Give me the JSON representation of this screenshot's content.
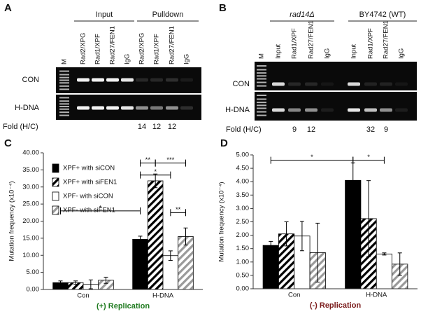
{
  "panel_a": {
    "label": "A",
    "groups": [
      "Input",
      "Pulldown"
    ],
    "lanes": [
      "M",
      "Rad2/XPG",
      "Rad1/XPF",
      "Rad27/FEN1",
      "IgG",
      "Rad2/XPG",
      "Rad1/XPF",
      "Rad27/FEN1",
      "IgG"
    ],
    "rows": [
      "CON",
      "H-DNA"
    ],
    "fold": {
      "label": "Fold (H/C)",
      "values": [
        null,
        null,
        null,
        null,
        null,
        14,
        12,
        12,
        null
      ]
    }
  },
  "panel_b": {
    "label": "B",
    "groups": [
      "rad14Δ",
      "BY4742 (WT)"
    ],
    "lanes": [
      "M",
      "Input",
      "Rad1/XPF",
      "Rad27/FEN1",
      "IgG",
      "Input",
      "Rad1/XPF",
      "Rad27/FEN1",
      "IgG"
    ],
    "rows": [
      "CON",
      "H-DNA"
    ],
    "fold": {
      "label": "Fold (H/C)",
      "values": [
        null,
        null,
        9,
        12,
        null,
        null,
        32,
        9,
        null
      ]
    }
  },
  "chart_data": [
    {
      "type": "bar",
      "panel_label": "C",
      "ylabel": "Mutation frequency (x10⁻⁴)",
      "xlabel": "(+) Replication",
      "xlabel_color": "#1e7a1e",
      "categories": [
        "Con",
        "H-DNA"
      ],
      "legend": "upper left",
      "ylim": [
        0,
        40
      ],
      "yticks": [
        {
          "value": 0,
          "label": "0.00"
        },
        {
          "value": 5,
          "label": "5.00"
        },
        {
          "value": 10,
          "label": "10.00"
        },
        {
          "value": 15,
          "label": "15.00"
        },
        {
          "value": 20,
          "label": "20.00"
        },
        {
          "value": 25,
          "label": "25.00"
        },
        {
          "value": 30,
          "label": "30.00"
        },
        {
          "value": 35,
          "label": "35.00"
        },
        {
          "value": 40,
          "label": "40.00"
        }
      ],
      "series": [
        {
          "name": "XPF+ with siCON",
          "color": "#000000",
          "hatch": false,
          "values": [
            2.0,
            14.7
          ],
          "errors": [
            0.5,
            0.9
          ]
        },
        {
          "name": "XPF+ with siFEN1",
          "color": "#000000",
          "hatch": true,
          "values": [
            2.0,
            31.8
          ],
          "errors": [
            0.5,
            2.0
          ]
        },
        {
          "name": "XPF- with siCON",
          "color": "#ffffff",
          "hatch": false,
          "values": [
            1.5,
            9.9
          ],
          "errors": [
            1.3,
            1.4
          ]
        },
        {
          "name": "XPF- with siFEN1",
          "color": "#9a9a9a",
          "hatch": true,
          "values": [
            2.7,
            15.5
          ],
          "errors": [
            0.9,
            2.5
          ]
        }
      ],
      "annotations": [
        {
          "text": "*",
          "from": [
            0,
            0
          ],
          "to": [
            1,
            0
          ],
          "y": 23
        },
        {
          "text": "**",
          "from": [
            1,
            0
          ],
          "to": [
            1,
            1
          ],
          "y": 37
        },
        {
          "text": "***",
          "from": [
            1,
            1
          ],
          "to": [
            1,
            3
          ],
          "y": 37
        },
        {
          "text": "*",
          "from": [
            1,
            0
          ],
          "to": [
            1,
            2
          ],
          "y": 33.5
        },
        {
          "text": "**",
          "from": [
            1,
            2
          ],
          "to": [
            1,
            3
          ],
          "y": 22.5
        }
      ]
    },
    {
      "type": "bar",
      "panel_label": "D",
      "ylabel": "Mutation frequency (x10⁻⁴)",
      "xlabel": "(-) Replication",
      "xlabel_color": "#7a1a1a",
      "categories": [
        "Con",
        "H-DNA"
      ],
      "ylim": [
        0,
        5
      ],
      "yticks": [
        {
          "value": 0,
          "label": "0.00"
        },
        {
          "value": 0.5,
          "label": "0.50"
        },
        {
          "value": 1,
          "label": "1.00"
        },
        {
          "value": 1.5,
          "label": "1.50"
        },
        {
          "value": 2,
          "label": "2.00"
        },
        {
          "value": 2.5,
          "label": "2.50"
        },
        {
          "value": 3,
          "label": "3.00"
        },
        {
          "value": 3.5,
          "label": "3.50"
        },
        {
          "value": 4,
          "label": "4.00"
        },
        {
          "value": 4.5,
          "label": "4.50"
        },
        {
          "value": 5,
          "label": "5.00"
        }
      ],
      "series": [
        {
          "color": "#000000",
          "hatch": false,
          "values": [
            1.62,
            4.05
          ],
          "errors": [
            0.15,
            0.65
          ]
        },
        {
          "color": "#000000",
          "hatch": true,
          "values": [
            2.05,
            2.62
          ],
          "errors": [
            0.45,
            1.42
          ]
        },
        {
          "color": "#ffffff",
          "hatch": false,
          "values": [
            1.97,
            1.3
          ],
          "errors": [
            0.55,
            0.04
          ]
        },
        {
          "color": "#9a9a9a",
          "hatch": true,
          "values": [
            1.35,
            0.92
          ],
          "errors": [
            1.1,
            0.42
          ]
        }
      ],
      "annotations": [
        {
          "text": "*",
          "from": [
            0,
            0
          ],
          "to": [
            1,
            0
          ],
          "y": 4.8
        },
        {
          "text": "*",
          "from": [
            1,
            0
          ],
          "to": [
            1,
            2
          ],
          "y": 4.8
        }
      ]
    }
  ]
}
